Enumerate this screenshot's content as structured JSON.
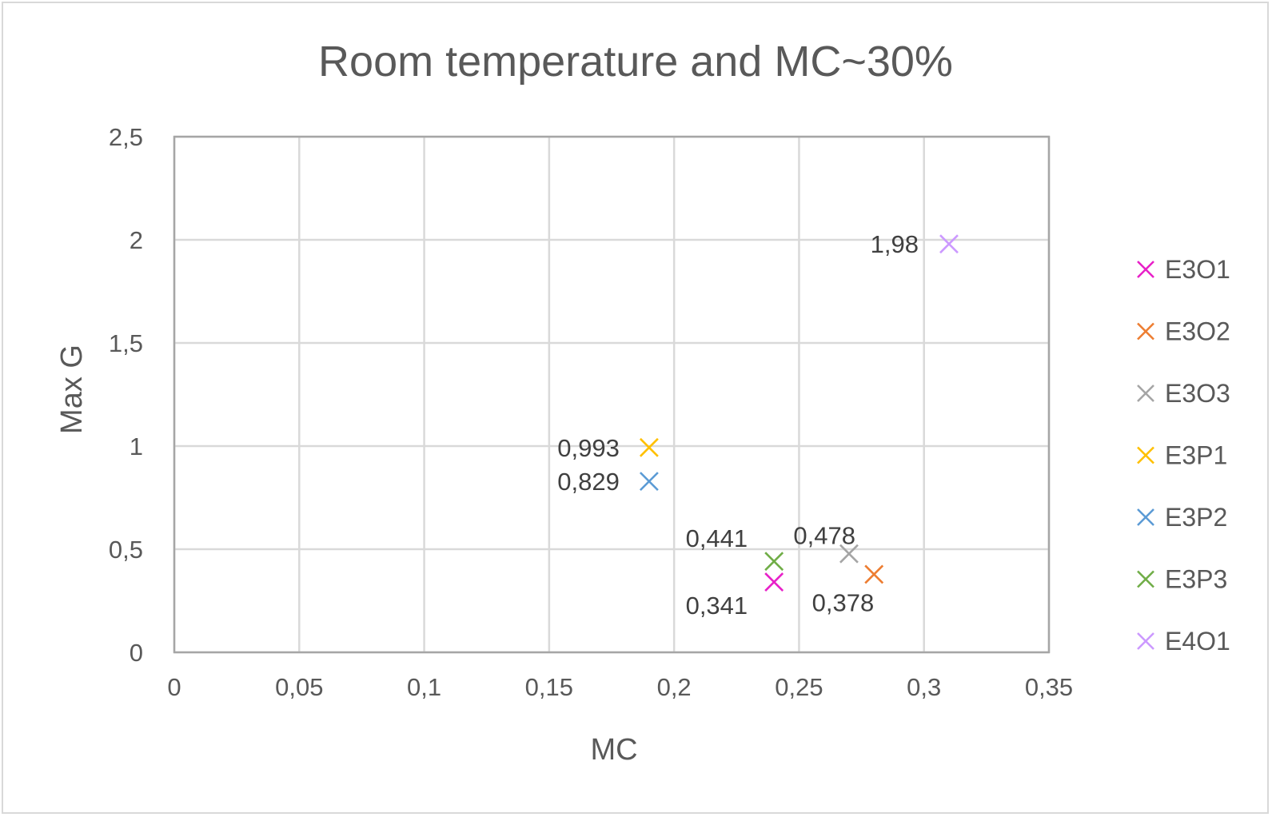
{
  "chart_data": {
    "type": "scatter",
    "title": "Room temperature and MC~30%",
    "xlabel": "MC",
    "ylabel": "Max G",
    "xlim": [
      0,
      0.35
    ],
    "ylim": [
      0,
      2.5
    ],
    "x_ticks": [
      "0",
      "0,05",
      "0,1",
      "0,15",
      "0,2",
      "0,25",
      "0,3",
      "0,35"
    ],
    "y_ticks": [
      "0",
      "0,5",
      "1",
      "1,5",
      "2",
      "2,5"
    ],
    "grid": true,
    "legend_position": "right",
    "marker": "x",
    "series": [
      {
        "name": "E3O1",
        "color": "#e820c8",
        "points": [
          {
            "x": 0.24,
            "y": 0.341,
            "label": "0,341"
          }
        ]
      },
      {
        "name": "E3O2",
        "color": "#ed7d31",
        "points": [
          {
            "x": 0.28,
            "y": 0.378,
            "label": "0,378"
          }
        ]
      },
      {
        "name": "E3O3",
        "color": "#a5a5a5",
        "points": [
          {
            "x": 0.27,
            "y": 0.478,
            "label": "0,478"
          }
        ]
      },
      {
        "name": "E3P1",
        "color": "#ffc000",
        "points": [
          {
            "x": 0.19,
            "y": 0.993,
            "label": "0,993"
          }
        ]
      },
      {
        "name": "E3P2",
        "color": "#5b9bd5",
        "points": [
          {
            "x": 0.19,
            "y": 0.829,
            "label": "0,829"
          }
        ]
      },
      {
        "name": "E3P3",
        "color": "#70ad47",
        "points": [
          {
            "x": 0.24,
            "y": 0.441,
            "label": "0,441"
          }
        ]
      },
      {
        "name": "E4O1",
        "color": "#cc99ff",
        "points": [
          {
            "x": 0.31,
            "y": 1.98,
            "label": "1,98"
          }
        ]
      }
    ]
  }
}
